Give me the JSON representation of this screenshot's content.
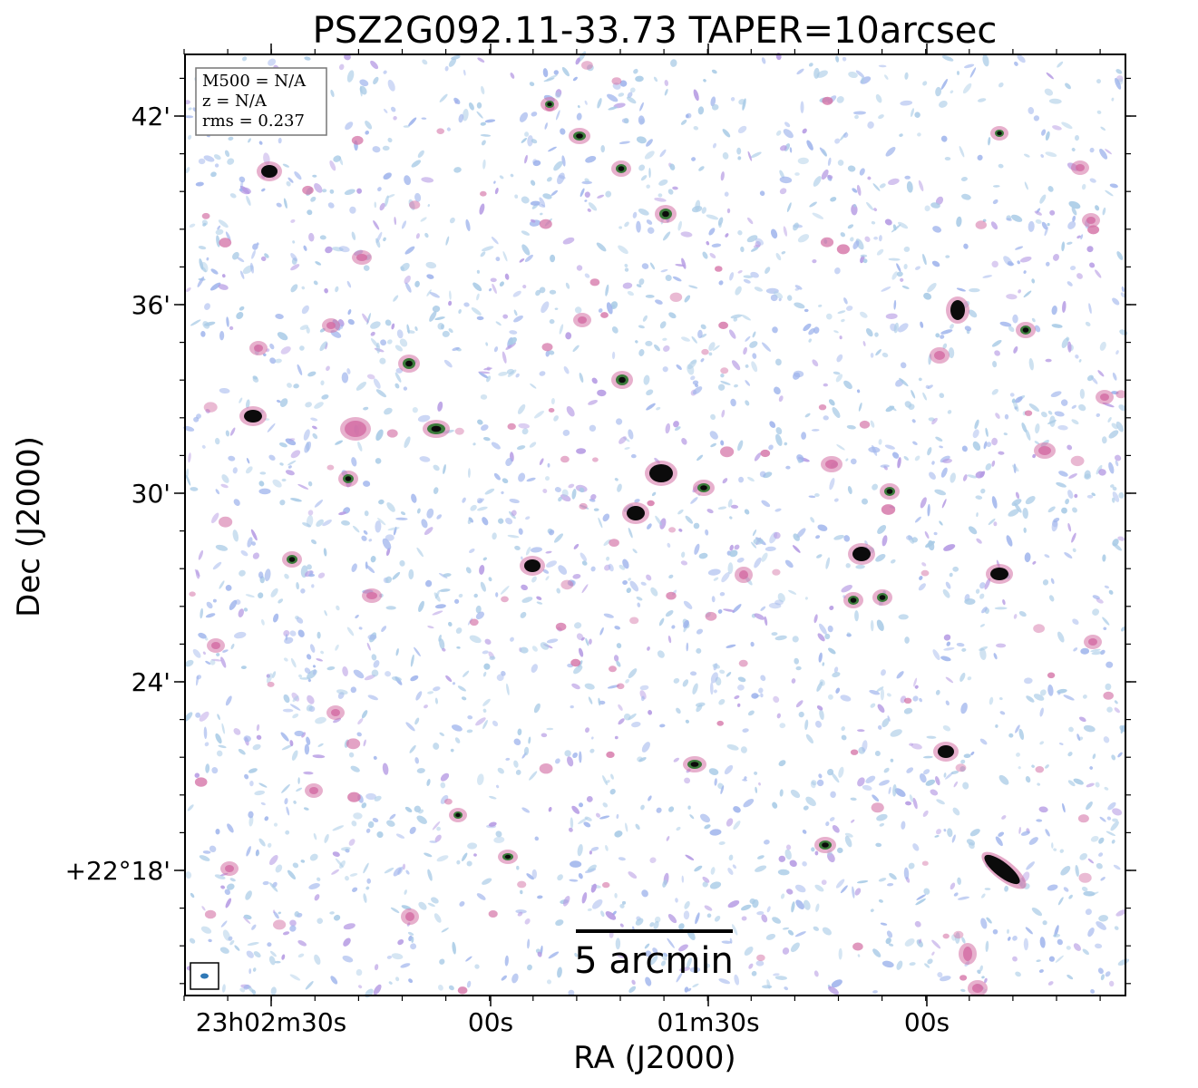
{
  "title": "PSZ2G092.11-33.73 TAPER=10arcsec",
  "x_axis_label": "RA (J2000)",
  "y_axis_label": "Dec (J2000)",
  "x_ticks": [
    "23h02m30s",
    "00s",
    "01m30s",
    "00s"
  ],
  "y_ticks": [
    "42'",
    "36'",
    "30'",
    "24'",
    "+22°18'"
  ],
  "info_box": {
    "m500": "M500 = N/A",
    "z": "z = N/A",
    "rms": "rms = 0.237"
  },
  "scalebar_label": "5 arcmin",
  "colors": {
    "noise_light": "#a9cbe6",
    "noise_mid": "#9fb4ec",
    "noise_purple": "#b59ae3",
    "source_pink": "#d36fa4",
    "source_core": "#0b0b0b",
    "source_green": "#3a7a3a",
    "beam": "#2f78b6"
  }
}
